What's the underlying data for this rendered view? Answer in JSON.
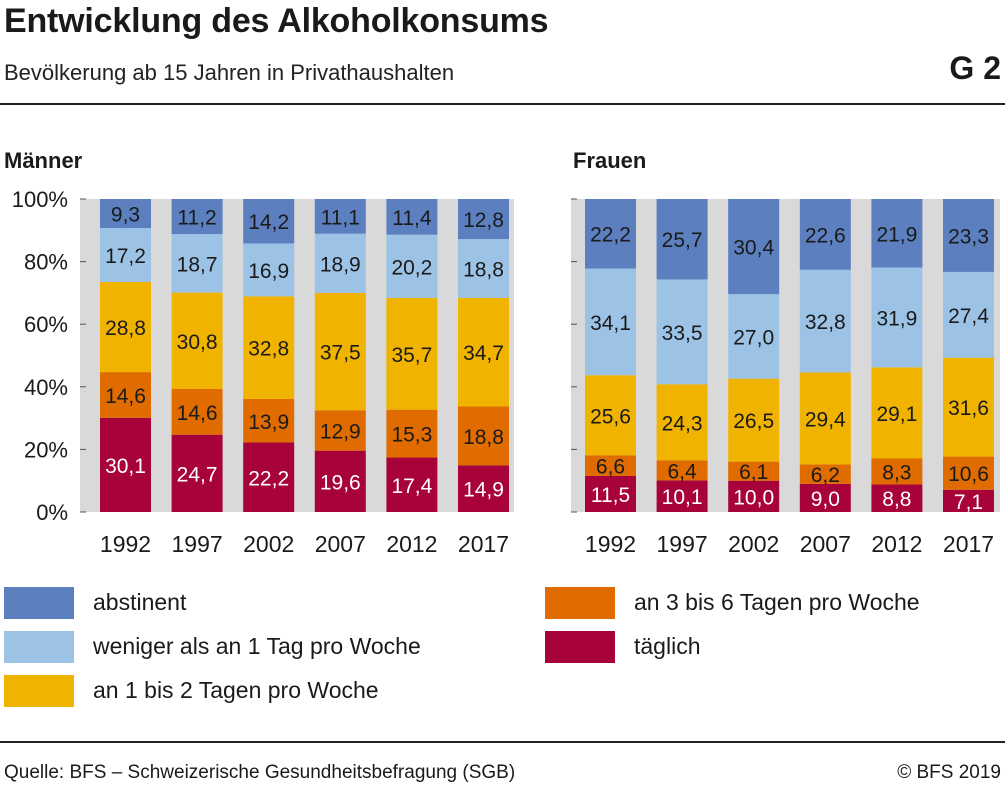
{
  "header": {
    "title": "Entwicklung des Alkoholkonsums",
    "subtitle": "Bevölkerung ab 15 Jahren in Privathaushalten",
    "code": "G 2"
  },
  "colors": {
    "abstinent": "#5b7fbf",
    "weniger": "#9cc3e6",
    "an1bis2": "#f0b400",
    "an3bis6": "#e06c00",
    "taeglich": "#a8023a",
    "panel_bg": "#d9d9d9"
  },
  "legend": [
    {
      "key": "abstinent",
      "label": "abstinent"
    },
    {
      "key": "weniger",
      "label": "weniger als an 1 Tag pro Woche"
    },
    {
      "key": "an1bis2",
      "label": "an 1 bis 2 Tagen pro Woche"
    },
    {
      "key": "an3bis6",
      "label": "an 3 bis 6 Tagen pro Woche"
    },
    {
      "key": "taeglich",
      "label": "täglich"
    }
  ],
  "chart_data": [
    {
      "type": "bar",
      "stacked": true,
      "title": "Männer",
      "categories": [
        "1992",
        "1997",
        "2002",
        "2007",
        "2012",
        "2017"
      ],
      "y_ticks": [
        "0%",
        "20%",
        "40%",
        "60%",
        "80%",
        "100%"
      ],
      "ylim": [
        0,
        100
      ],
      "series": [
        {
          "name": "täglich",
          "key": "taeglich",
          "values": [
            30.1,
            24.7,
            22.2,
            19.6,
            17.4,
            14.9
          ],
          "labels": [
            "30,1",
            "24,7",
            "22,2",
            "19,6",
            "17,4",
            "14,9"
          ]
        },
        {
          "name": "an 3 bis 6 Tagen pro Woche",
          "key": "an3bis6",
          "values": [
            14.6,
            14.6,
            13.9,
            12.9,
            15.3,
            18.8
          ],
          "labels": [
            "14,6",
            "14,6",
            "13,9",
            "12,9",
            "15,3",
            "18,8"
          ]
        },
        {
          "name": "an 1 bis 2 Tagen pro Woche",
          "key": "an1bis2",
          "values": [
            28.8,
            30.8,
            32.8,
            37.5,
            35.7,
            34.7
          ],
          "labels": [
            "28,8",
            "30,8",
            "32,8",
            "37,5",
            "35,7",
            "34,7"
          ]
        },
        {
          "name": "weniger als an 1 Tag pro Woche",
          "key": "weniger",
          "values": [
            17.2,
            18.7,
            16.9,
            18.9,
            20.2,
            18.8
          ],
          "labels": [
            "17,2",
            "18,7",
            "16,9",
            "18,9",
            "20,2",
            "18,8"
          ]
        },
        {
          "name": "abstinent",
          "key": "abstinent",
          "values": [
            9.3,
            11.2,
            14.2,
            11.1,
            11.4,
            12.8
          ],
          "labels": [
            "9,3",
            "11,2",
            "14,2",
            "11,1",
            "11,4",
            "12,8"
          ]
        }
      ]
    },
    {
      "type": "bar",
      "stacked": true,
      "title": "Frauen",
      "categories": [
        "1992",
        "1997",
        "2002",
        "2007",
        "2012",
        "2017"
      ],
      "ylim": [
        0,
        100
      ],
      "series": [
        {
          "name": "täglich",
          "key": "taeglich",
          "values": [
            11.5,
            10.1,
            10.0,
            9.0,
            8.8,
            7.1
          ],
          "labels": [
            "11,5",
            "10,1",
            "10,0",
            "9,0",
            "8,8",
            "7,1"
          ]
        },
        {
          "name": "an 3 bis 6 Tagen pro Woche",
          "key": "an3bis6",
          "values": [
            6.6,
            6.4,
            6.1,
            6.2,
            8.3,
            10.6
          ],
          "labels": [
            "6,6",
            "6,4",
            "6,1",
            "6,2",
            "8,3",
            "10,6"
          ]
        },
        {
          "name": "an 1 bis 2 Tagen pro Woche",
          "key": "an1bis2",
          "values": [
            25.6,
            24.3,
            26.5,
            29.4,
            29.1,
            31.6
          ],
          "labels": [
            "25,6",
            "24,3",
            "26,5",
            "29,4",
            "29,1",
            "31,6"
          ]
        },
        {
          "name": "weniger als an 1 Tag pro Woche",
          "key": "weniger",
          "values": [
            34.1,
            33.5,
            27.0,
            32.8,
            31.9,
            27.4
          ],
          "labels": [
            "34,1",
            "33,5",
            "27,0",
            "32,8",
            "31,9",
            "27,4"
          ]
        },
        {
          "name": "abstinent",
          "key": "abstinent",
          "values": [
            22.2,
            25.7,
            30.4,
            22.6,
            21.9,
            23.3
          ],
          "labels": [
            "22,2",
            "25,7",
            "30,4",
            "22,6",
            "21,9",
            "23,3"
          ]
        }
      ]
    }
  ],
  "footer": {
    "source": "Quelle: BFS – Schweizerische Gesundheitsbefragung (SGB)",
    "copyright": "© BFS 2019"
  }
}
